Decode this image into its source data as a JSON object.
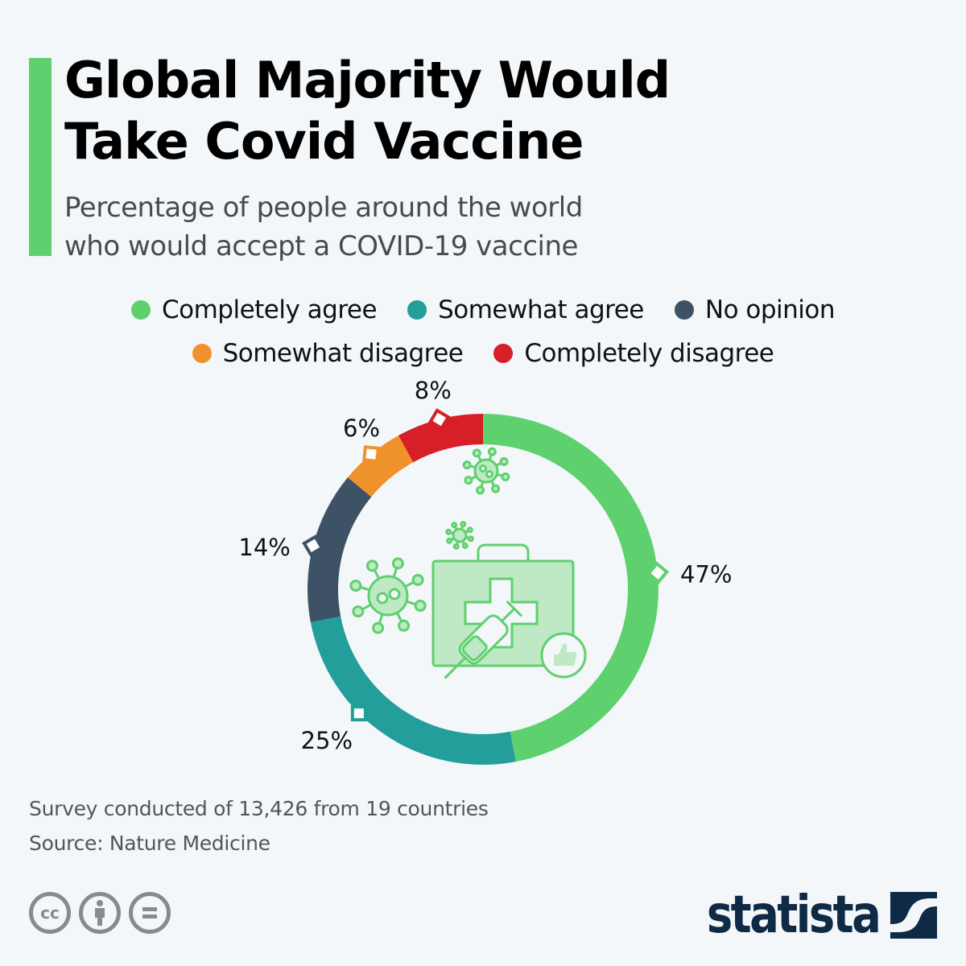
{
  "header": {
    "title_line1": "Global Majority Would",
    "title_line2": "Take Covid Vaccine",
    "subtitle_line1": "Percentage of people around the world",
    "subtitle_line2": "who would accept a COVID-19 vaccine",
    "accent_color": "#5fd06e"
  },
  "chart_data": {
    "type": "pie",
    "variant": "donut",
    "title": "Global Majority Would Take Covid Vaccine",
    "subtitle": "Percentage of people around the world who would accept a COVID-19 vaccine",
    "unit": "%",
    "legend_position": "top",
    "series": [
      {
        "name": "Completely agree",
        "value": 47,
        "label": "47%",
        "color": "#5fd06e"
      },
      {
        "name": "Somewhat agree",
        "value": 25,
        "label": "25%",
        "color": "#239e9a"
      },
      {
        "name": "No opinion",
        "value": 14,
        "label": "14%",
        "color": "#3e5266"
      },
      {
        "name": "Somewhat disagree",
        "value": 6,
        "label": "6%",
        "color": "#f0922c"
      },
      {
        "name": "Completely disagree",
        "value": 8,
        "label": "8%",
        "color": "#d61f26"
      }
    ],
    "center_illustration": "medical-kit-syringe-virus-icon"
  },
  "footer": {
    "note": "Survey conducted of 13,426 from 19 countries",
    "source": "Source: Nature Medicine",
    "license_icons": [
      "cc-icon",
      "attribution-icon",
      "no-derivatives-icon"
    ],
    "cc_label": "cc",
    "brand": "statista"
  }
}
